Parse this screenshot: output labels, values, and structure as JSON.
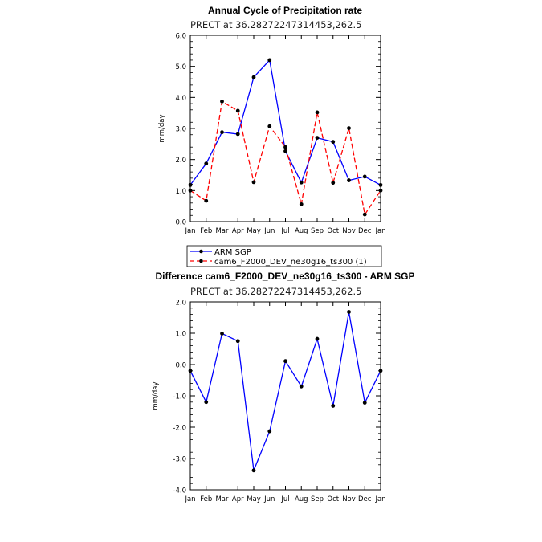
{
  "chart_data": [
    {
      "type": "line",
      "title": "Annual Cycle of Precipitation rate",
      "subtitle": "PRECT at 36.28272247314453,262.5",
      "xlabel": "",
      "ylabel": "mm/day",
      "categories": [
        "Jan",
        "Feb",
        "Mar",
        "Apr",
        "May",
        "Jun",
        "Jul",
        "Aug",
        "Sep",
        "Oct",
        "Nov",
        "Dec",
        "Jan"
      ],
      "ylim": [
        0,
        6
      ],
      "yticks": [
        "0.0",
        "1.0",
        "2.0",
        "3.0",
        "4.0",
        "5.0",
        "6.0"
      ],
      "legend_position": "bottom",
      "series": [
        {
          "name": "ARM SGP",
          "color": "#0000ff",
          "dash": "solid",
          "values": [
            1.18,
            1.87,
            2.88,
            2.82,
            4.65,
            5.2,
            2.27,
            1.26,
            2.7,
            2.57,
            1.33,
            1.45,
            1.18
          ]
        },
        {
          "name": "cam6_F2000_DEV_ne30g16_ts300 (1)",
          "color": "#ff0000",
          "dash": "dashed",
          "values": [
            1.0,
            0.67,
            3.87,
            3.57,
            1.27,
            3.07,
            2.4,
            0.56,
            3.52,
            1.25,
            3.01,
            0.23,
            1.0
          ]
        }
      ]
    },
    {
      "type": "line",
      "title": "Difference cam6_F2000_DEV_ne30g16_ts300 - ARM SGP",
      "subtitle": "PRECT at 36.28272247314453,262.5",
      "xlabel": "",
      "ylabel": "mm/day",
      "categories": [
        "Jan",
        "Feb",
        "Mar",
        "Apr",
        "May",
        "Jun",
        "Jul",
        "Aug",
        "Sep",
        "Oct",
        "Nov",
        "Dec",
        "Jan"
      ],
      "ylim": [
        -4,
        2
      ],
      "yticks": [
        "-4.0",
        "-3.0",
        "-2.0",
        "-1.0",
        "0.0",
        "1.0",
        "2.0"
      ],
      "series": [
        {
          "name": "",
          "color": "#0000ff",
          "dash": "solid",
          "values": [
            -0.2,
            -1.2,
            0.99,
            0.75,
            -3.38,
            -2.13,
            0.11,
            -0.7,
            0.82,
            -1.32,
            1.68,
            -1.22,
            -0.2
          ]
        }
      ]
    }
  ]
}
